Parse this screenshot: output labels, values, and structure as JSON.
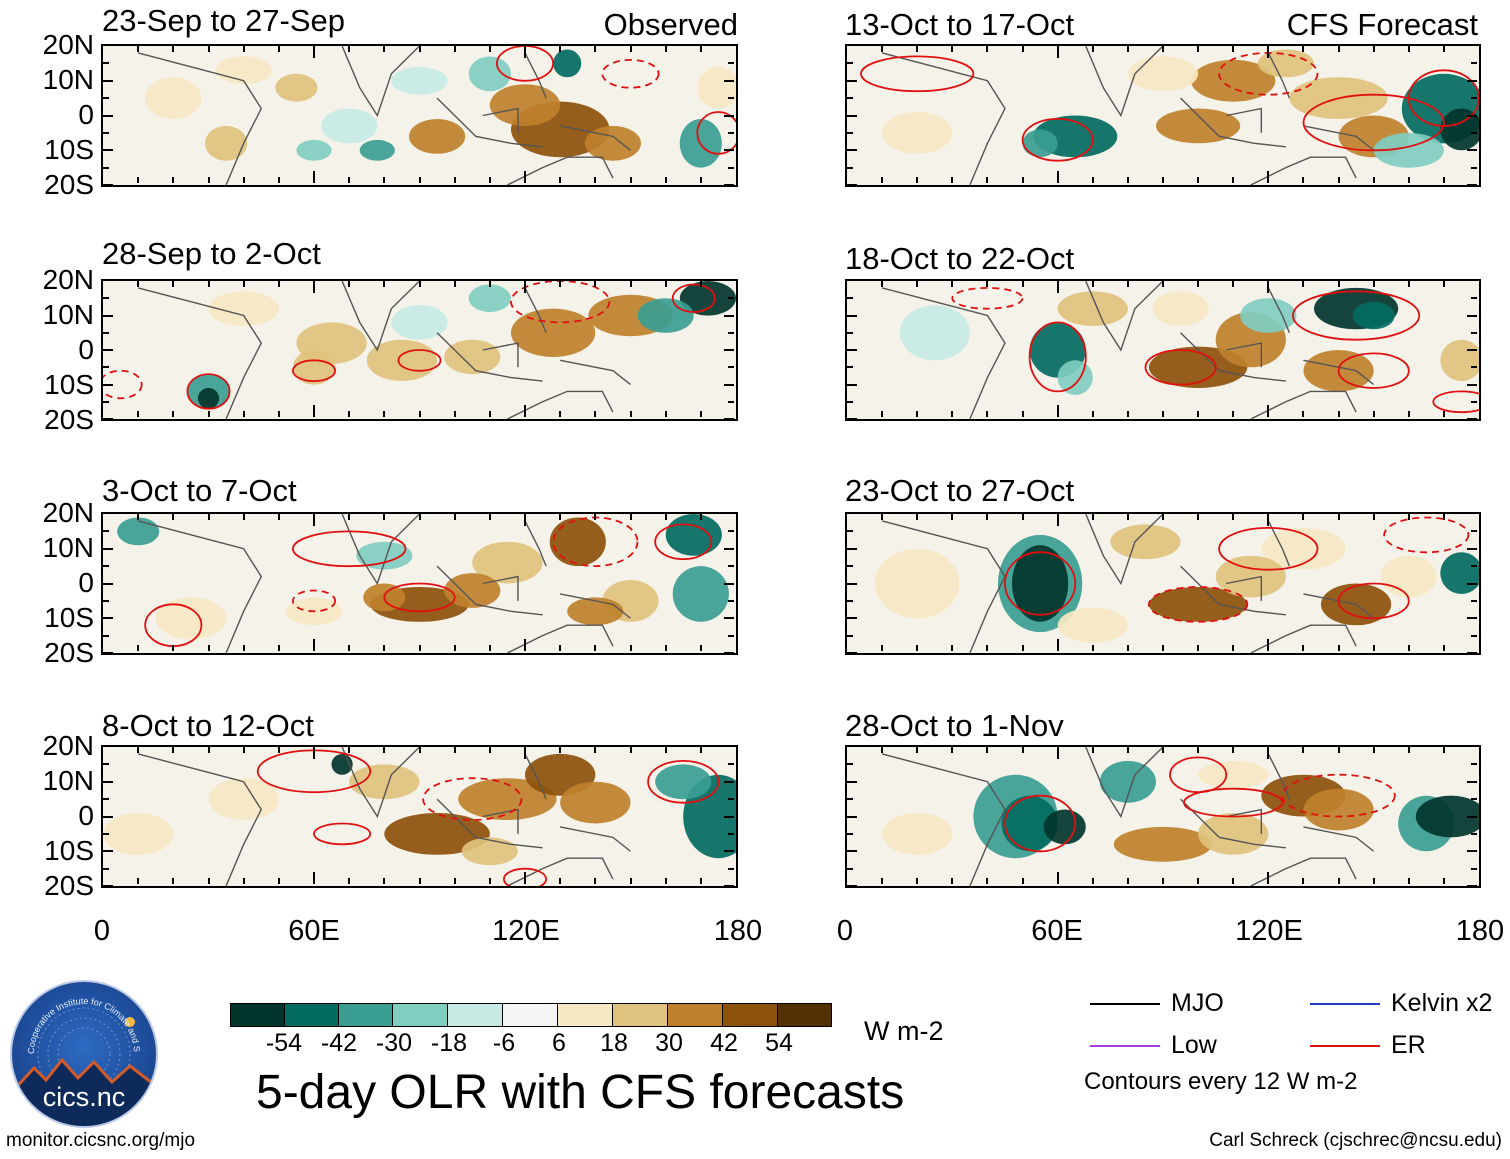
{
  "panels_left": [
    {
      "title": "23-Sep to 27-Sep",
      "tag": "Observed"
    },
    {
      "title": "28-Sep to 2-Oct"
    },
    {
      "title": "3-Oct to 7-Oct"
    },
    {
      "title": "8-Oct to 12-Oct"
    }
  ],
  "panels_right": [
    {
      "title": "13-Oct to 17-Oct",
      "tag": "CFS Forecast"
    },
    {
      "title": "18-Oct to 22-Oct"
    },
    {
      "title": "23-Oct to 27-Oct"
    },
    {
      "title": "28-Oct to 1-Nov"
    }
  ],
  "chart_data": {
    "type": "heatmap",
    "title": "5-day OLR with CFS forecasts",
    "variable": "OLR anomaly",
    "units": "W m-2",
    "lat_ticks": [
      "20N",
      "10N",
      "0",
      "10S",
      "20S"
    ],
    "lat_range": [
      -20,
      20
    ],
    "lon_ticks": [
      "0",
      "60E",
      "120E",
      "180"
    ],
    "lon_range": [
      0,
      180
    ],
    "colorbar": {
      "ticks": [
        "-54",
        "-42",
        "-30",
        "-18",
        "-6",
        "6",
        "18",
        "30",
        "42",
        "54"
      ],
      "colors": [
        "#01352c",
        "#036b60",
        "#3a9d91",
        "#80cdc1",
        "#c7eae5",
        "#f5f5f5",
        "#f6e8c3",
        "#dfc27d",
        "#bf812d",
        "#8c510a",
        "#543005"
      ]
    },
    "legend": [
      {
        "label": "MJO",
        "color": "#000000"
      },
      {
        "label": "Kelvin x2",
        "color": "#2040c0"
      },
      {
        "label": "Low",
        "color": "#a040e0"
      },
      {
        "label": "ER",
        "color": "#e01010"
      }
    ],
    "contour_note": "Contours every 12 W m-2"
  },
  "logo": {
    "text": "cics.nc",
    "ring_text": "Cooperative Institute for Climate and Satellites"
  },
  "footer": {
    "left": "monitor.cicsnc.org/mjo",
    "right": "Carl Schreck (cjschrec@ncsu.edu)"
  }
}
